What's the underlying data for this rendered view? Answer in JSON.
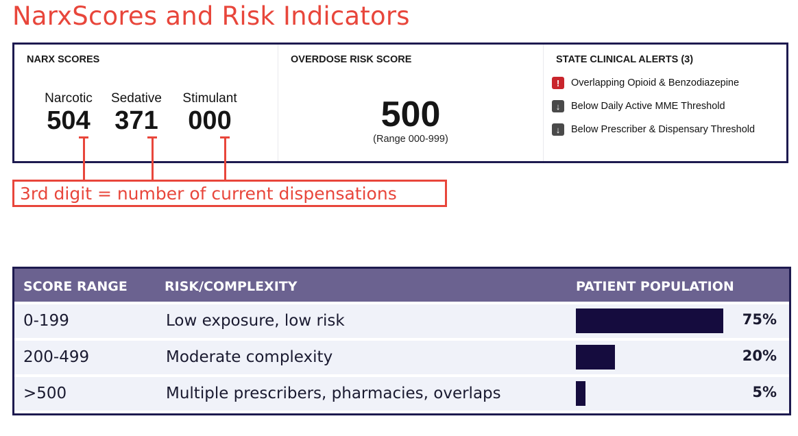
{
  "page": {
    "title": "NarxScores and Risk Indicators"
  },
  "narx": {
    "heading": "NARX SCORES",
    "scores": [
      {
        "label": "Narcotic",
        "value": "504"
      },
      {
        "label": "Sedative",
        "value": "371"
      },
      {
        "label": "Stimulant",
        "value": "000"
      }
    ]
  },
  "overdose": {
    "heading": "OVERDOSE RISK SCORE",
    "value": "500",
    "range": "(Range 000-999)"
  },
  "alerts": {
    "heading": "STATE CLINICAL ALERTS (3)",
    "items": [
      {
        "icon": "exclamation-icon",
        "color": "#c9252c",
        "glyph": "!",
        "text": "Overlapping Opioid & Benzodiazepine"
      },
      {
        "icon": "arrow-down-icon",
        "color": "#4a4a4a",
        "glyph": "↓",
        "text": "Below Daily Active MME Threshold"
      },
      {
        "icon": "arrow-down-icon",
        "color": "#4a4a4a",
        "glyph": "↓",
        "text": "Below Prescriber & Dispensary Threshold"
      }
    ]
  },
  "callout": {
    "text": "3rd digit = number of current dispensations"
  },
  "table": {
    "headers": [
      "SCORE RANGE",
      "RISK/COMPLEXITY",
      "PATIENT POPULATION"
    ],
    "rows": [
      {
        "range": "0-199",
        "risk": "Low exposure, low risk",
        "population": "75%",
        "population_value": 75
      },
      {
        "range": "200-499",
        "risk": "Moderate complexity",
        "population": "20%",
        "population_value": 20
      },
      {
        "range": ">500",
        "risk": "Multiple prescribers, pharmacies, overlaps",
        "population": "5%",
        "population_value": 5
      }
    ]
  },
  "colors": {
    "title": "#e8463b",
    "border": "#1d1a4f",
    "table_header": "#6b6290",
    "bar": "#150c3e"
  }
}
